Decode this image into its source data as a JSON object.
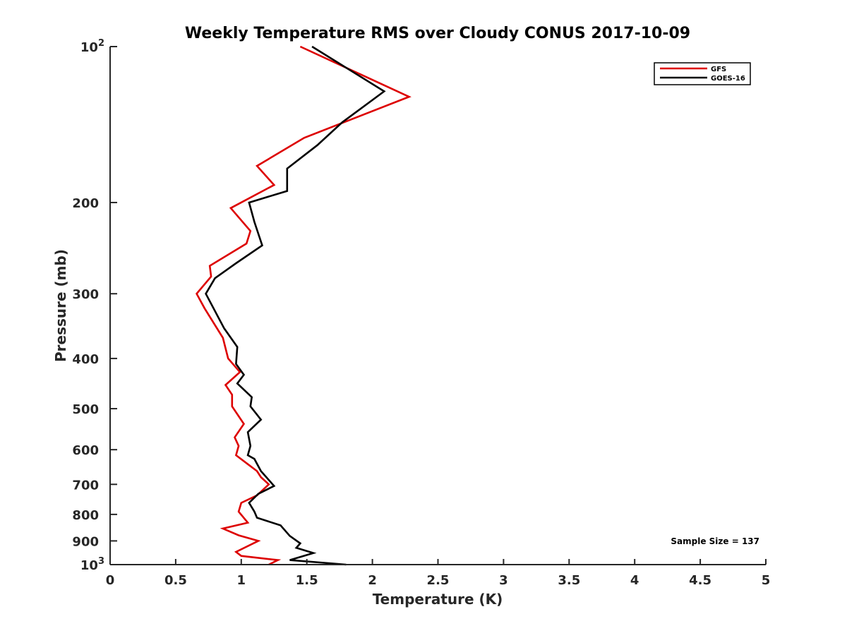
{
  "chart_data": {
    "type": "line",
    "title": "Weekly Temperature RMS over Cloudy CONUS 2017-10-09",
    "xlabel": "Temperature (K)",
    "ylabel": "Pressure (mb)",
    "xlim": [
      0,
      5
    ],
    "ylim": [
      100,
      1000
    ],
    "y_scale": "log",
    "y_reversed": true,
    "grid": false,
    "legend_position": "top-right",
    "x_ticks": [
      0,
      0.5,
      1,
      1.5,
      2,
      2.5,
      3,
      3.5,
      4,
      4.5,
      5
    ],
    "x_tick_labels": [
      "0",
      "0.5",
      "1",
      "1.5",
      "2",
      "2.5",
      "3",
      "3.5",
      "4",
      "4.5",
      "5"
    ],
    "y_ticks": [
      {
        "value": 100,
        "base": "10",
        "exp": "2"
      },
      {
        "value": 200,
        "label": "200"
      },
      {
        "value": 300,
        "label": "300"
      },
      {
        "value": 400,
        "label": "400"
      },
      {
        "value": 500,
        "label": "500"
      },
      {
        "value": 600,
        "label": "600"
      },
      {
        "value": 700,
        "label": "700"
      },
      {
        "value": 800,
        "label": "800"
      },
      {
        "value": 900,
        "label": "900"
      },
      {
        "value": 1000,
        "base": "10",
        "exp": "3"
      }
    ],
    "series": [
      {
        "name": "GFS",
        "color": "#dd0000",
        "points": [
          [
            1.45,
            100
          ],
          [
            2.28,
            125
          ],
          [
            1.48,
            150
          ],
          [
            1.12,
            170
          ],
          [
            1.25,
            185
          ],
          [
            0.92,
            205
          ],
          [
            1.07,
            227
          ],
          [
            1.04,
            240
          ],
          [
            0.76,
            265
          ],
          [
            0.77,
            278
          ],
          [
            0.66,
            300
          ],
          [
            0.72,
            320
          ],
          [
            0.86,
            365
          ],
          [
            0.9,
            400
          ],
          [
            0.99,
            425
          ],
          [
            0.88,
            450
          ],
          [
            0.93,
            470
          ],
          [
            0.93,
            495
          ],
          [
            1.02,
            535
          ],
          [
            0.95,
            568
          ],
          [
            0.98,
            590
          ],
          [
            0.96,
            615
          ],
          [
            1.05,
            640
          ],
          [
            1.12,
            660
          ],
          [
            1.15,
            678
          ],
          [
            1.21,
            700
          ],
          [
            1.12,
            735
          ],
          [
            1.0,
            760
          ],
          [
            0.98,
            790
          ],
          [
            1.05,
            830
          ],
          [
            0.86,
            852
          ],
          [
            0.98,
            878
          ],
          [
            1.13,
            900
          ],
          [
            0.96,
            945
          ],
          [
            1.0,
            962
          ],
          [
            1.28,
            980
          ],
          [
            1.21,
            1000
          ]
        ]
      },
      {
        "name": "GOES-16",
        "color": "#000000",
        "points": [
          [
            1.54,
            100
          ],
          [
            2.09,
            122
          ],
          [
            1.77,
            140
          ],
          [
            1.58,
            155
          ],
          [
            1.35,
            172
          ],
          [
            1.35,
            190
          ],
          [
            1.06,
            200
          ],
          [
            1.1,
            218
          ],
          [
            1.16,
            242
          ],
          [
            0.96,
            262
          ],
          [
            0.8,
            280
          ],
          [
            0.73,
            300
          ],
          [
            0.87,
            350
          ],
          [
            0.97,
            380
          ],
          [
            0.96,
            410
          ],
          [
            1.02,
            430
          ],
          [
            0.97,
            447
          ],
          [
            1.08,
            475
          ],
          [
            1.07,
            495
          ],
          [
            1.15,
            525
          ],
          [
            1.05,
            555
          ],
          [
            1.07,
            590
          ],
          [
            1.05,
            615
          ],
          [
            1.1,
            625
          ],
          [
            1.15,
            660
          ],
          [
            1.25,
            705
          ],
          [
            1.13,
            730
          ],
          [
            1.06,
            760
          ],
          [
            1.1,
            790
          ],
          [
            1.12,
            812
          ],
          [
            1.3,
            840
          ],
          [
            1.37,
            880
          ],
          [
            1.45,
            910
          ],
          [
            1.42,
            928
          ],
          [
            1.55,
            950
          ],
          [
            1.37,
            980
          ],
          [
            1.8,
            1000
          ]
        ]
      }
    ],
    "annotation": "Sample Size = 137"
  }
}
